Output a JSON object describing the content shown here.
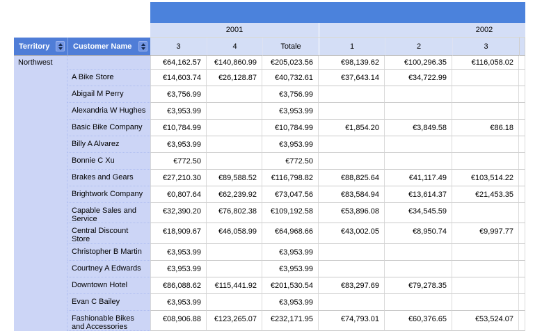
{
  "colors": {
    "top_bar": "#4b82dc",
    "header_blue": "#4f7dd7",
    "light_band": "#d4def6",
    "row_header": "#ccd5f6",
    "sort_button": "#7295e4"
  },
  "table": {
    "corner_headers": {
      "territory": "Territory",
      "customer": "Customer Name"
    },
    "year_groups": [
      {
        "label": "2001"
      },
      {
        "label": "2002"
      }
    ],
    "columns": [
      "3",
      "4",
      "Totale",
      "1",
      "2",
      "3"
    ],
    "territory": "Northwest",
    "territory_total_row": {
      "name": "",
      "values": [
        "€64,162.57",
        "€140,860.99",
        "€205,023.56",
        "€98,139.62",
        "€100,296.35",
        "€116,058.02"
      ]
    },
    "rows": [
      {
        "name": "A Bike Store",
        "values": [
          "€14,603.74",
          "€26,128.87",
          "€40,732.61",
          "€37,643.14",
          "€34,722.99",
          ""
        ]
      },
      {
        "name": "Abigail M Perry",
        "values": [
          "€3,756.99",
          "",
          "€3,756.99",
          "",
          "",
          ""
        ]
      },
      {
        "name": "Alexandria W Hughes",
        "values": [
          "€3,953.99",
          "",
          "€3,953.99",
          "",
          "",
          ""
        ]
      },
      {
        "name": "Basic Bike Company",
        "values": [
          "€10,784.99",
          "",
          "€10,784.99",
          "€1,854.20",
          "€3,849.58",
          "€86.18"
        ]
      },
      {
        "name": "Billy A Alvarez",
        "values": [
          "€3,953.99",
          "",
          "€3,953.99",
          "",
          "",
          ""
        ]
      },
      {
        "name": "Bonnie C Xu",
        "values": [
          "€772.50",
          "",
          "€772.50",
          "",
          "",
          ""
        ]
      },
      {
        "name": "Brakes and Gears",
        "values": [
          "€27,210.30",
          "€89,588.52",
          "€116,798.82",
          "€88,825.64",
          "€41,117.49",
          "€103,514.22"
        ]
      },
      {
        "name": "Brightwork Company",
        "values": [
          "€0,807.64",
          "€62,239.92",
          "€73,047.56",
          "€83,584.94",
          "€13,614.37",
          "€21,453.35"
        ]
      },
      {
        "name": "Capable Sales and Service",
        "values": [
          "€32,390.20",
          "€76,802.38",
          "€109,192.58",
          "€53,896.08",
          "€34,545.59",
          ""
        ]
      },
      {
        "name": "Central Discount Store",
        "values": [
          "€18,909.67",
          "€46,058.99",
          "€64,968.66",
          "€43,002.05",
          "€8,950.74",
          "€9,997.77"
        ]
      },
      {
        "name": "Christopher B Martin",
        "values": [
          "€3,953.99",
          "",
          "€3,953.99",
          "",
          "",
          ""
        ]
      },
      {
        "name": "Courtney A Edwards",
        "values": [
          "€3,953.99",
          "",
          "€3,953.99",
          "",
          "",
          ""
        ]
      },
      {
        "name": "Downtown Hotel",
        "values": [
          "€86,088.62",
          "€115,441.92",
          "€201,530.54",
          "€83,297.69",
          "€79,278.35",
          ""
        ]
      },
      {
        "name": "Evan C Bailey",
        "values": [
          "€3,953.99",
          "",
          "€3,953.99",
          "",
          "",
          ""
        ]
      },
      {
        "name": "Fashionable Bikes and Accessories",
        "values": [
          "€08,906.88",
          "€123,265.07",
          "€232,171.95",
          "€74,793.01",
          "€60,376.65",
          "€53,524.07"
        ]
      }
    ]
  }
}
